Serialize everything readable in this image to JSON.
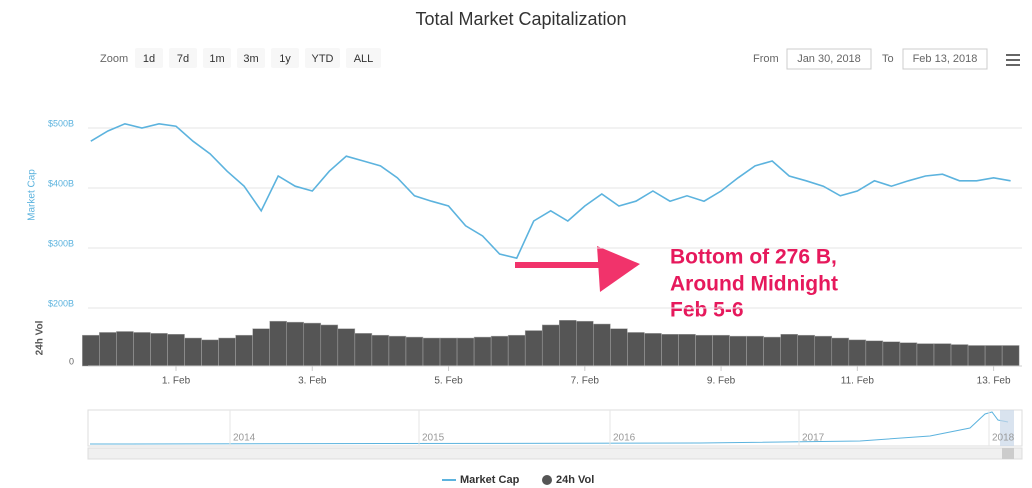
{
  "chart_data": {
    "type": "line",
    "title": "Total Market Capitalization",
    "zoom_label": "Zoom",
    "zoom_buttons": [
      "1d",
      "7d",
      "1m",
      "3m",
      "1y",
      "YTD",
      "ALL"
    ],
    "from_label": "From",
    "from_date": "Jan 30, 2018",
    "to_label": "To",
    "to_date": "Feb 13, 2018",
    "ylabel": "Market Cap",
    "y2label": "24h Vol",
    "annotation": [
      "Bottom of 276 B,",
      "Around Midnight",
      "Feb 5-6"
    ],
    "navigator_labels": [
      "2014",
      "2015",
      "2016",
      "2017",
      "2018"
    ],
    "xlim": [
      "2018-01-30T17:00:00Z",
      "2018-02-13T10:00:00Z"
    ],
    "xticks": [
      {
        "value": "2018-02-01T00:00:00Z",
        "label": "1. Feb"
      },
      {
        "value": "2018-02-03T00:00:00Z",
        "label": "3. Feb"
      },
      {
        "value": "2018-02-05T00:00:00Z",
        "label": "5. Feb"
      },
      {
        "value": "2018-02-07T00:00:00Z",
        "label": "7. Feb"
      },
      {
        "value": "2018-02-09T00:00:00Z",
        "label": "9. Feb"
      },
      {
        "value": "2018-02-11T00:00:00Z",
        "label": "11. Feb"
      },
      {
        "value": "2018-02-13T00:00:00Z",
        "label": "13. Feb"
      }
    ],
    "ylim": [
      200,
      530
    ],
    "yticks": [
      {
        "value": 200,
        "label": "$200B"
      },
      {
        "value": 300,
        "label": "$300B"
      },
      {
        "value": 400,
        "label": "$400B"
      },
      {
        "value": 500,
        "label": "$500B"
      }
    ],
    "y2lim": [
      0,
      60
    ],
    "y2ticks": [
      0
    ],
    "grid": true,
    "x": [
      "2018-01-30T18:00:00Z",
      "2018-01-31T00:00:00Z",
      "2018-01-31T06:00:00Z",
      "2018-01-31T12:00:00Z",
      "2018-01-31T18:00:00Z",
      "2018-02-01T00:00:00Z",
      "2018-02-01T06:00:00Z",
      "2018-02-01T12:00:00Z",
      "2018-02-01T18:00:00Z",
      "2018-02-02T00:00:00Z",
      "2018-02-02T06:00:00Z",
      "2018-02-02T12:00:00Z",
      "2018-02-02T18:00:00Z",
      "2018-02-03T00:00:00Z",
      "2018-02-03T06:00:00Z",
      "2018-02-03T12:00:00Z",
      "2018-02-03T18:00:00Z",
      "2018-02-04T00:00:00Z",
      "2018-02-04T06:00:00Z",
      "2018-02-04T12:00:00Z",
      "2018-02-04T18:00:00Z",
      "2018-02-05T00:00:00Z",
      "2018-02-05T06:00:00Z",
      "2018-02-05T12:00:00Z",
      "2018-02-05T18:00:00Z",
      "2018-02-06T00:00:00Z",
      "2018-02-06T06:00:00Z",
      "2018-02-06T12:00:00Z",
      "2018-02-06T18:00:00Z",
      "2018-02-07T00:00:00Z",
      "2018-02-07T06:00:00Z",
      "2018-02-07T12:00:00Z",
      "2018-02-07T18:00:00Z",
      "2018-02-08T00:00:00Z",
      "2018-02-08T06:00:00Z",
      "2018-02-08T12:00:00Z",
      "2018-02-08T18:00:00Z",
      "2018-02-09T00:00:00Z",
      "2018-02-09T06:00:00Z",
      "2018-02-09T12:00:00Z",
      "2018-02-09T18:00:00Z",
      "2018-02-10T00:00:00Z",
      "2018-02-10T06:00:00Z",
      "2018-02-10T12:00:00Z",
      "2018-02-10T18:00:00Z",
      "2018-02-11T00:00:00Z",
      "2018-02-11T06:00:00Z",
      "2018-02-11T12:00:00Z",
      "2018-02-11T18:00:00Z",
      "2018-02-12T00:00:00Z",
      "2018-02-12T06:00:00Z",
      "2018-02-12T12:00:00Z",
      "2018-02-12T18:00:00Z",
      "2018-02-13T00:00:00Z",
      "2018-02-13T06:00:00Z"
    ],
    "series": [
      {
        "name": "Market Cap",
        "color": "#5cb3de",
        "values": [
          478,
          495,
          507,
          500,
          507,
          503,
          478,
          457,
          428,
          403,
          362,
          420,
          403,
          395,
          428,
          453,
          445,
          437,
          417,
          387,
          378,
          370,
          337,
          320,
          290,
          283,
          345,
          362,
          345,
          370,
          390,
          370,
          378,
          395,
          378,
          387,
          378,
          395,
          417,
          437,
          445,
          420,
          412,
          403,
          387,
          395,
          412,
          403,
          412,
          420,
          423,
          412,
          412,
          417,
          412
        ]
      },
      {
        "name": "24h Vol",
        "color": "#555555",
        "axis": "y2",
        "values": [
          33,
          36,
          37,
          36,
          35,
          34,
          30,
          28,
          30,
          33,
          40,
          48,
          47,
          46,
          44,
          40,
          35,
          33,
          32,
          31,
          30,
          30,
          30,
          31,
          32,
          33,
          38,
          44,
          49,
          48,
          45,
          40,
          36,
          35,
          34,
          34,
          33,
          33,
          32,
          32,
          31,
          34,
          33,
          32,
          30,
          28,
          27,
          26,
          25,
          24,
          24,
          23,
          22,
          22,
          22
        ]
      }
    ]
  }
}
